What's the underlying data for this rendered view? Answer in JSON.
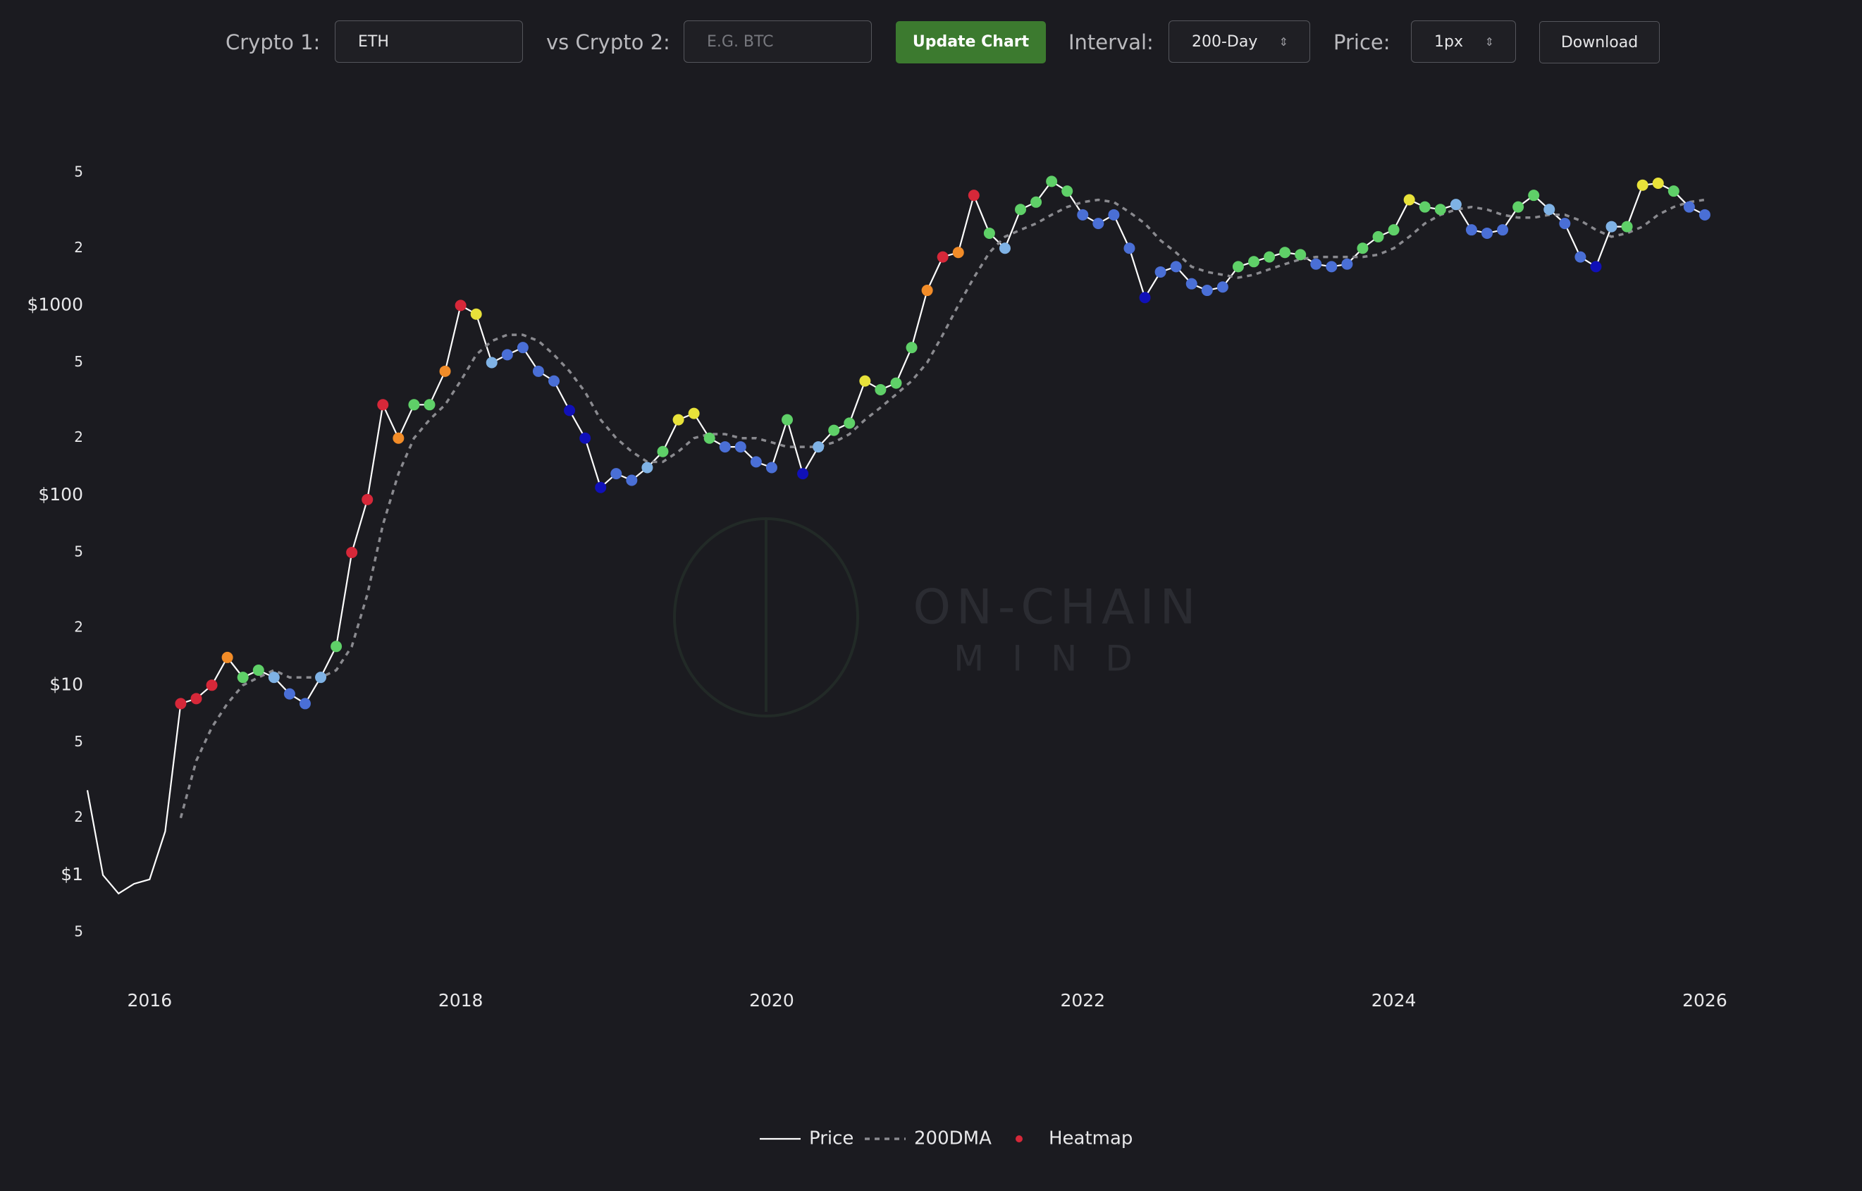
{
  "controls": {
    "crypto1_label": "Crypto 1:",
    "crypto1_value": "ETH",
    "crypto2_label": "vs Crypto 2:",
    "crypto2_placeholder": "E.G. BTC",
    "update_button": "Update Chart",
    "interval_label": "Interval:",
    "interval_value": "200-Day",
    "price_label": "Price:",
    "price_value": "1px",
    "download_button": "Download"
  },
  "watermark": {
    "line1": "ON-CHAIN",
    "line2": "MIND"
  },
  "chart_data": {
    "type": "line",
    "log_y": true,
    "grid": false,
    "x": [
      2015.6,
      2015.7,
      2015.8,
      2015.9,
      2016.0,
      2016.1,
      2016.2,
      2016.3,
      2016.4,
      2016.5,
      2016.6,
      2016.7,
      2016.8,
      2016.9,
      2017.0,
      2017.1,
      2017.2,
      2017.3,
      2017.4,
      2017.5,
      2017.6,
      2017.7,
      2017.8,
      2017.9,
      2018.0,
      2018.1,
      2018.2,
      2018.3,
      2018.4,
      2018.5,
      2018.6,
      2018.7,
      2018.8,
      2018.9,
      2019.0,
      2019.1,
      2019.2,
      2019.3,
      2019.4,
      2019.5,
      2019.6,
      2019.7,
      2019.8,
      2019.9,
      2020.0,
      2020.1,
      2020.2,
      2020.3,
      2020.4,
      2020.5,
      2020.6,
      2020.7,
      2020.8,
      2020.9,
      2021.0,
      2021.1,
      2021.2,
      2021.3,
      2021.4,
      2021.5,
      2021.6,
      2021.7,
      2021.8,
      2021.9,
      2022.0,
      2022.1,
      2022.2,
      2022.3,
      2022.4,
      2022.5,
      2022.6,
      2022.7,
      2022.8,
      2022.9,
      2023.0,
      2023.1,
      2023.2,
      2023.3,
      2023.4,
      2023.5,
      2023.6,
      2023.7,
      2023.8,
      2023.9,
      2024.0,
      2024.1,
      2024.2,
      2024.3,
      2024.4,
      2024.5,
      2024.6,
      2024.7,
      2024.8,
      2024.9,
      2025.0,
      2025.1,
      2025.2,
      2025.3,
      2025.4,
      2025.5,
      2025.6,
      2025.7,
      2025.8,
      2025.9,
      2026.0
    ],
    "series": [
      {
        "name": "Price",
        "color": "#ffffff",
        "values": [
          2.8,
          1.0,
          0.8,
          0.9,
          0.95,
          1.7,
          8,
          8.5,
          10,
          14,
          11,
          12,
          11,
          9,
          8,
          11,
          16,
          50,
          95,
          300,
          200,
          300,
          300,
          450,
          1000,
          900,
          500,
          550,
          600,
          450,
          400,
          280,
          200,
          110,
          130,
          120,
          140,
          170,
          250,
          270,
          200,
          180,
          180,
          150,
          140,
          250,
          130,
          180,
          220,
          240,
          400,
          360,
          390,
          600,
          1200,
          1800,
          1900,
          3800,
          2400,
          2000,
          3200,
          3500,
          4500,
          4000,
          3000,
          2700,
          3000,
          2000,
          1100,
          1500,
          1600,
          1300,
          1200,
          1250,
          1600,
          1700,
          1800,
          1900,
          1850,
          1650,
          1600,
          1650,
          2000,
          2300,
          2500,
          3600,
          3300,
          3200,
          3400,
          2500,
          2400,
          2500,
          3300,
          3800,
          3200,
          2700,
          1800,
          1600,
          2600,
          2600,
          4300,
          4400,
          4000,
          3300,
          3000
        ]
      },
      {
        "name": "200DMA",
        "color": "#8a8a8f",
        "dashed": true,
        "values": [
          null,
          null,
          null,
          null,
          null,
          null,
          2,
          4,
          6,
          8,
          10,
          11,
          12,
          11,
          11,
          11,
          12,
          16,
          30,
          70,
          130,
          200,
          250,
          300,
          400,
          550,
          650,
          700,
          700,
          650,
          550,
          450,
          350,
          250,
          200,
          170,
          150,
          150,
          170,
          200,
          210,
          210,
          200,
          200,
          190,
          180,
          180,
          180,
          190,
          210,
          250,
          290,
          340,
          400,
          500,
          700,
          1000,
          1400,
          1900,
          2300,
          2500,
          2700,
          3000,
          3300,
          3500,
          3600,
          3500,
          3100,
          2700,
          2200,
          1900,
          1600,
          1500,
          1450,
          1400,
          1450,
          1550,
          1650,
          1750,
          1800,
          1800,
          1800,
          1800,
          1850,
          2000,
          2300,
          2700,
          3000,
          3200,
          3300,
          3200,
          3000,
          2900,
          2900,
          3000,
          3000,
          2800,
          2500,
          2300,
          2400,
          2600,
          3000,
          3300,
          3500,
          3600
        ]
      },
      {
        "name": "Heatmap",
        "color": "#d62839",
        "markers": true,
        "values": [
          null,
          null,
          null,
          null,
          null,
          null,
          8,
          8.5,
          10,
          14,
          11,
          12,
          11,
          9,
          8,
          11,
          16,
          50,
          95,
          300,
          200,
          300,
          300,
          450,
          1000,
          900,
          500,
          550,
          600,
          450,
          400,
          280,
          200,
          110,
          130,
          120,
          140,
          170,
          250,
          270,
          200,
          180,
          180,
          150,
          140,
          250,
          130,
          180,
          220,
          240,
          400,
          360,
          390,
          600,
          1200,
          1800,
          1900,
          3800,
          2400,
          2000,
          3200,
          3500,
          4500,
          4000,
          3000,
          2700,
          3000,
          2000,
          1100,
          1500,
          1600,
          1300,
          1200,
          1250,
          1600,
          1700,
          1800,
          1900,
          1850,
          1650,
          1600,
          1650,
          2000,
          2300,
          2500,
          3600,
          3300,
          3200,
          3400,
          2500,
          2400,
          2500,
          3300,
          3800,
          3200,
          2700,
          1800,
          1600,
          2600,
          2600,
          4300,
          4400,
          4000,
          3300,
          3000
        ],
        "point_colors": [
          null,
          null,
          null,
          null,
          null,
          null,
          "#d62839",
          "#d62839",
          "#d62839",
          "#f28c28",
          "#5fd068",
          "#5fd068",
          "#7fb2e5",
          "#4a6fd6",
          "#4a6fd6",
          "#7fb2e5",
          "#5fd068",
          "#d62839",
          "#d62839",
          "#d62839",
          "#f28c28",
          "#5fd068",
          "#5fd068",
          "#f28c28",
          "#d62839",
          "#e8e23a",
          "#7fb2e5",
          "#4a6fd6",
          "#4a6fd6",
          "#4a6fd6",
          "#4a6fd6",
          "#1010b8",
          "#1010b8",
          "#1010b8",
          "#4a6fd6",
          "#4a6fd6",
          "#7fb2e5",
          "#5fd068",
          "#e8e23a",
          "#e8e23a",
          "#5fd068",
          "#4a6fd6",
          "#4a6fd6",
          "#4a6fd6",
          "#4a6fd6",
          "#5fd068",
          "#1010b8",
          "#7fb2e5",
          "#5fd068",
          "#5fd068",
          "#e8e23a",
          "#5fd068",
          "#5fd068",
          "#5fd068",
          "#f28c28",
          "#d62839",
          "#f28c28",
          "#d62839",
          "#5fd068",
          "#7fb2e5",
          "#5fd068",
          "#5fd068",
          "#5fd068",
          "#5fd068",
          "#4a6fd6",
          "#4a6fd6",
          "#4a6fd6",
          "#4a6fd6",
          "#1010b8",
          "#4a6fd6",
          "#4a6fd6",
          "#4a6fd6",
          "#4a6fd6",
          "#4a6fd6",
          "#5fd068",
          "#5fd068",
          "#5fd068",
          "#5fd068",
          "#5fd068",
          "#4a6fd6",
          "#4a6fd6",
          "#4a6fd6",
          "#5fd068",
          "#5fd068",
          "#5fd068",
          "#e8e23a",
          "#5fd068",
          "#5fd068",
          "#7fb2e5",
          "#4a6fd6",
          "#4a6fd6",
          "#4a6fd6",
          "#5fd068",
          "#5fd068",
          "#7fb2e5",
          "#4a6fd6",
          "#4a6fd6",
          "#1010b8",
          "#7fb2e5",
          "#5fd068",
          "#e8e23a",
          "#e8e23a",
          "#5fd068",
          "#4a6fd6",
          "#4a6fd6"
        ]
      }
    ],
    "xlim": [
      2015.55,
      2026.1
    ],
    "xticks": [
      2016,
      2018,
      2020,
      2022,
      2024,
      2026
    ],
    "ylim": [
      0.4,
      6300
    ],
    "yticks": [
      {
        "value": 0.5,
        "label": "5"
      },
      {
        "value": 1,
        "label": "$1"
      },
      2,
      5,
      {
        "value": 10,
        "label": "$10"
      },
      {
        "value": 20,
        "label": "2"
      },
      {
        "value": 50,
        "label": "5"
      },
      {
        "value": 100,
        "label": "$100"
      },
      {
        "value": 200,
        "label": "2"
      },
      {
        "value": 500,
        "label": "5"
      },
      {
        "value": 1000,
        "label": "$1000"
      },
      {
        "value": 2000,
        "label": "2"
      },
      {
        "value": 5000,
        "label": "5"
      }
    ]
  }
}
